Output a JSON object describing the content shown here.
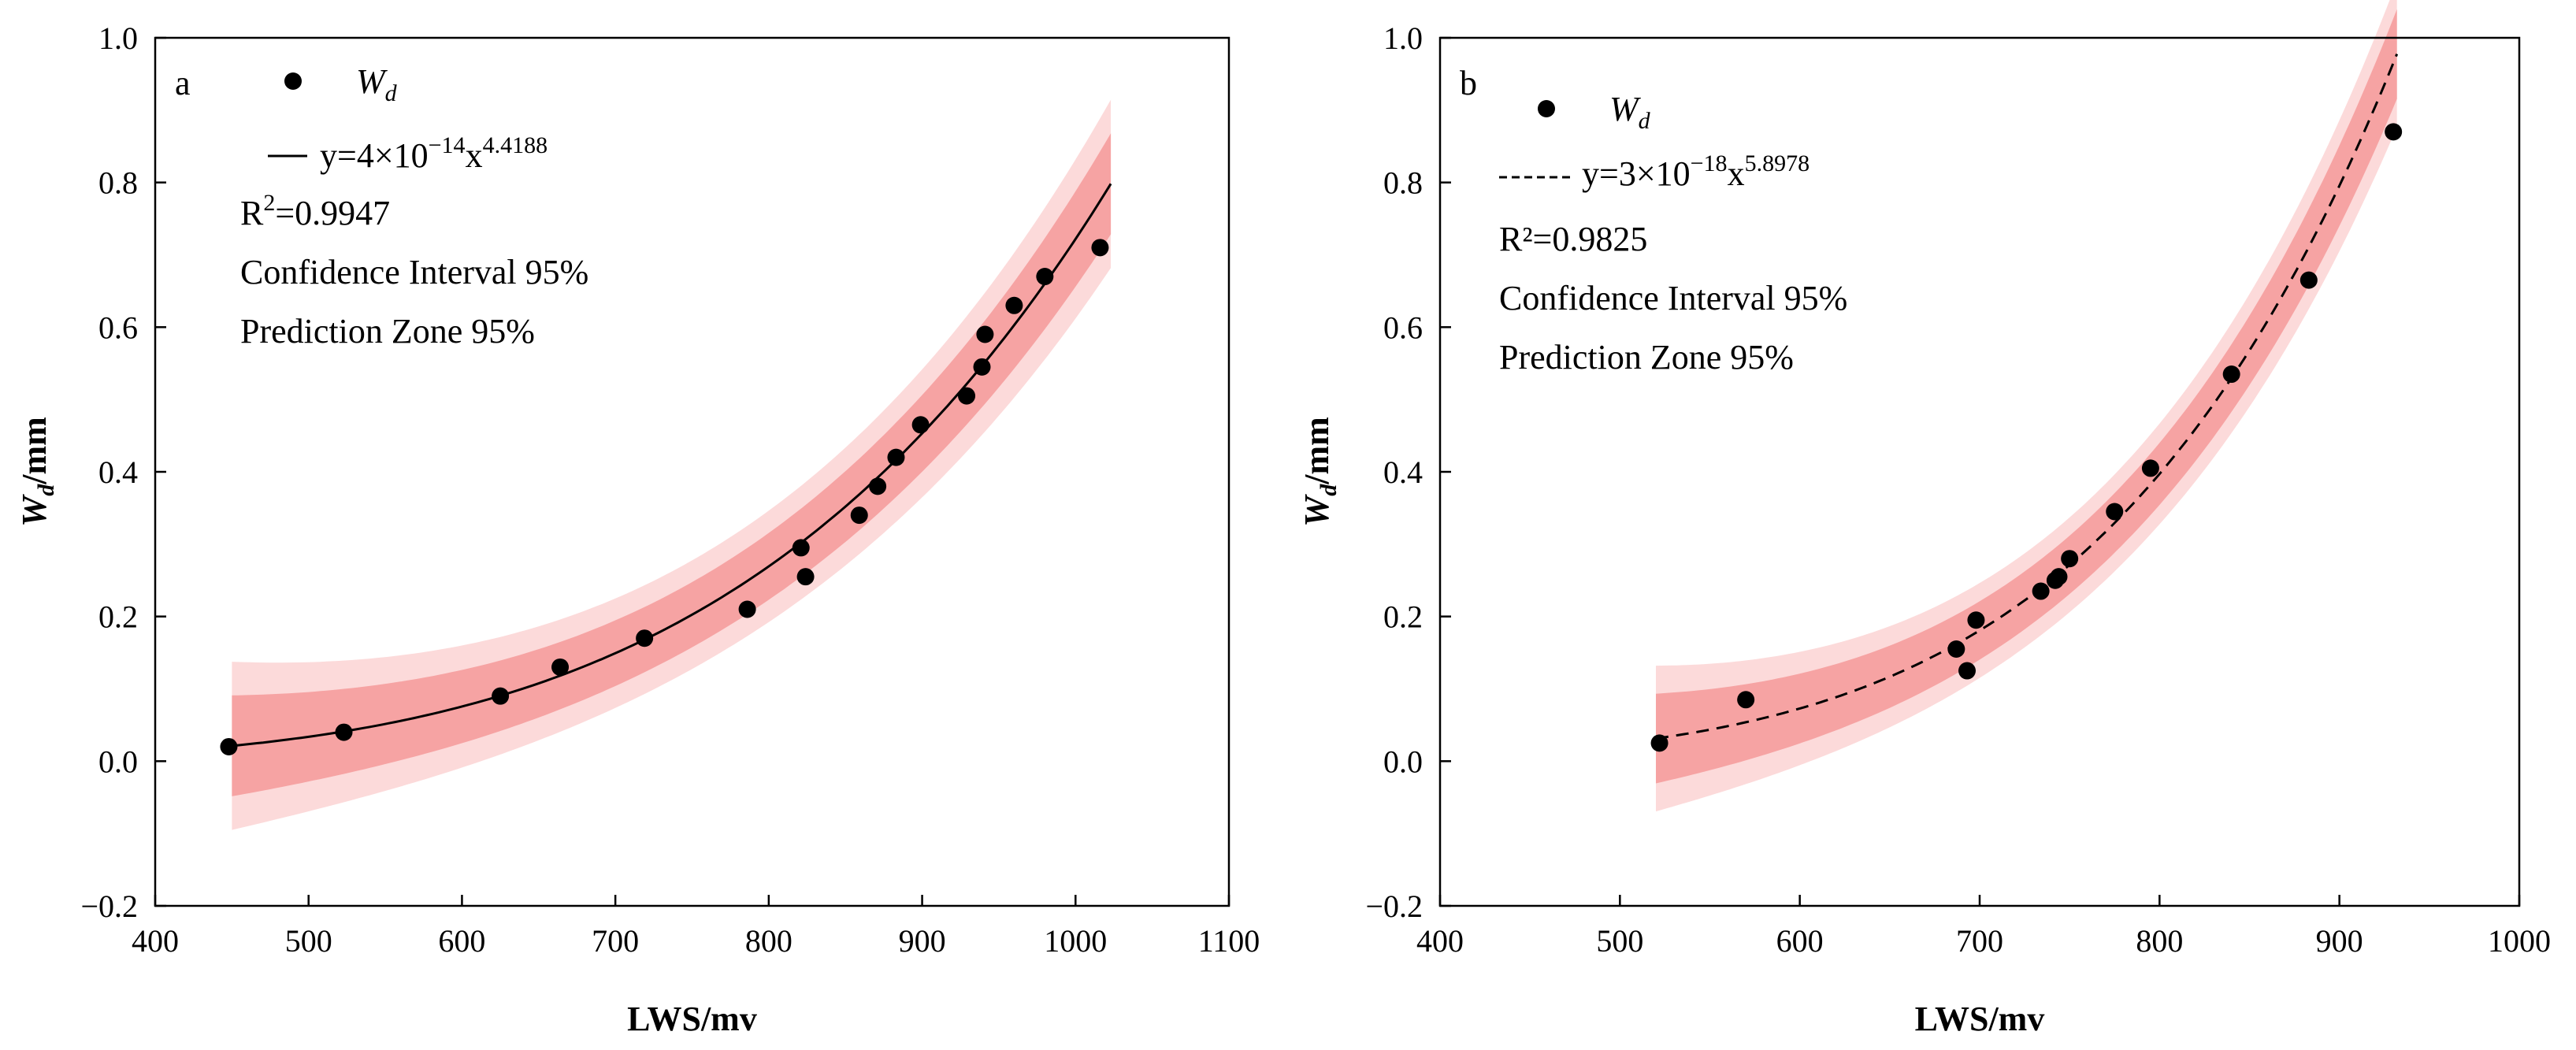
{
  "chart_data": [
    {
      "type": "scatter",
      "panel_label": "a",
      "xlabel": "LWS/mv",
      "ylabel_main": "W",
      "ylabel_sub": "d",
      "ylabel_unit": "/mm",
      "xlim": [
        400,
        1100
      ],
      "ylim": [
        -0.2,
        1.0
      ],
      "xticks": [
        "400",
        "500",
        "600",
        "700",
        "800",
        "900",
        "1000",
        "1100"
      ],
      "yticks": [
        "−0.2",
        "0.0",
        "0.2",
        "0.4",
        "0.6",
        "0.8",
        "1.0"
      ],
      "series_name": "W",
      "series_sub": "d",
      "fit": {
        "a": 4e-14,
        "b": 4.4188,
        "x_range": [
          450,
          1023
        ],
        "conf_half": 0.045,
        "pred_half": 0.075,
        "style": "solid"
      },
      "eq_prefix": "y=4×10",
      "eq_exp1": "−14",
      "eq_mid": "x",
      "eq_exp2": "4.4188",
      "r2_text": "R",
      "r2_sup": "2",
      "r2_val": "=0.9947",
      "ci_text": "Confidence Interval 95%",
      "pz_text": "Prediction Zone 95%",
      "x": [
        448,
        523,
        625,
        664,
        719,
        786,
        821,
        824,
        859,
        871,
        883,
        899,
        929,
        939,
        941,
        960,
        980,
        1016
      ],
      "y": [
        0.02,
        0.04,
        0.09,
        0.13,
        0.17,
        0.21,
        0.295,
        0.255,
        0.34,
        0.38,
        0.42,
        0.465,
        0.505,
        0.545,
        0.59,
        0.63,
        0.67,
        0.71
      ]
    },
    {
      "type": "scatter",
      "panel_label": "b",
      "xlabel": "LWS/mv",
      "ylabel_main": "W",
      "ylabel_sub": "d",
      "ylabel_unit": "/mm",
      "xlim": [
        400,
        1000
      ],
      "ylim": [
        -0.2,
        1.0
      ],
      "xticks": [
        "400",
        "500",
        "600",
        "700",
        "800",
        "900",
        "1000"
      ],
      "yticks": [
        "−0.2",
        "0.0",
        "0.2",
        "0.4",
        "0.6",
        "0.8",
        "1.0"
      ],
      "series_name": "W",
      "series_sub": "d",
      "fit": {
        "a": 3e-18,
        "b": 5.8978,
        "x_range": [
          520,
          932
        ],
        "conf_half": 0.04,
        "pred_half": 0.065,
        "style": "dashed"
      },
      "eq_prefix": "y=3×10",
      "eq_exp1": "−18",
      "eq_mid": "x",
      "eq_exp2": "5.8978",
      "r2_text": "R²",
      "r2_sup": "",
      "r2_val": "=0.9825",
      "ci_text": "Confidence Interval 95%",
      "pz_text": "Prediction Zone 95%",
      "x": [
        522,
        570,
        687,
        693,
        698,
        734,
        742,
        744,
        750,
        775,
        795,
        840,
        883,
        930
      ],
      "y": [
        0.025,
        0.085,
        0.155,
        0.125,
        0.195,
        0.235,
        0.25,
        0.255,
        0.28,
        0.345,
        0.405,
        0.535,
        0.665,
        0.87
      ]
    }
  ]
}
